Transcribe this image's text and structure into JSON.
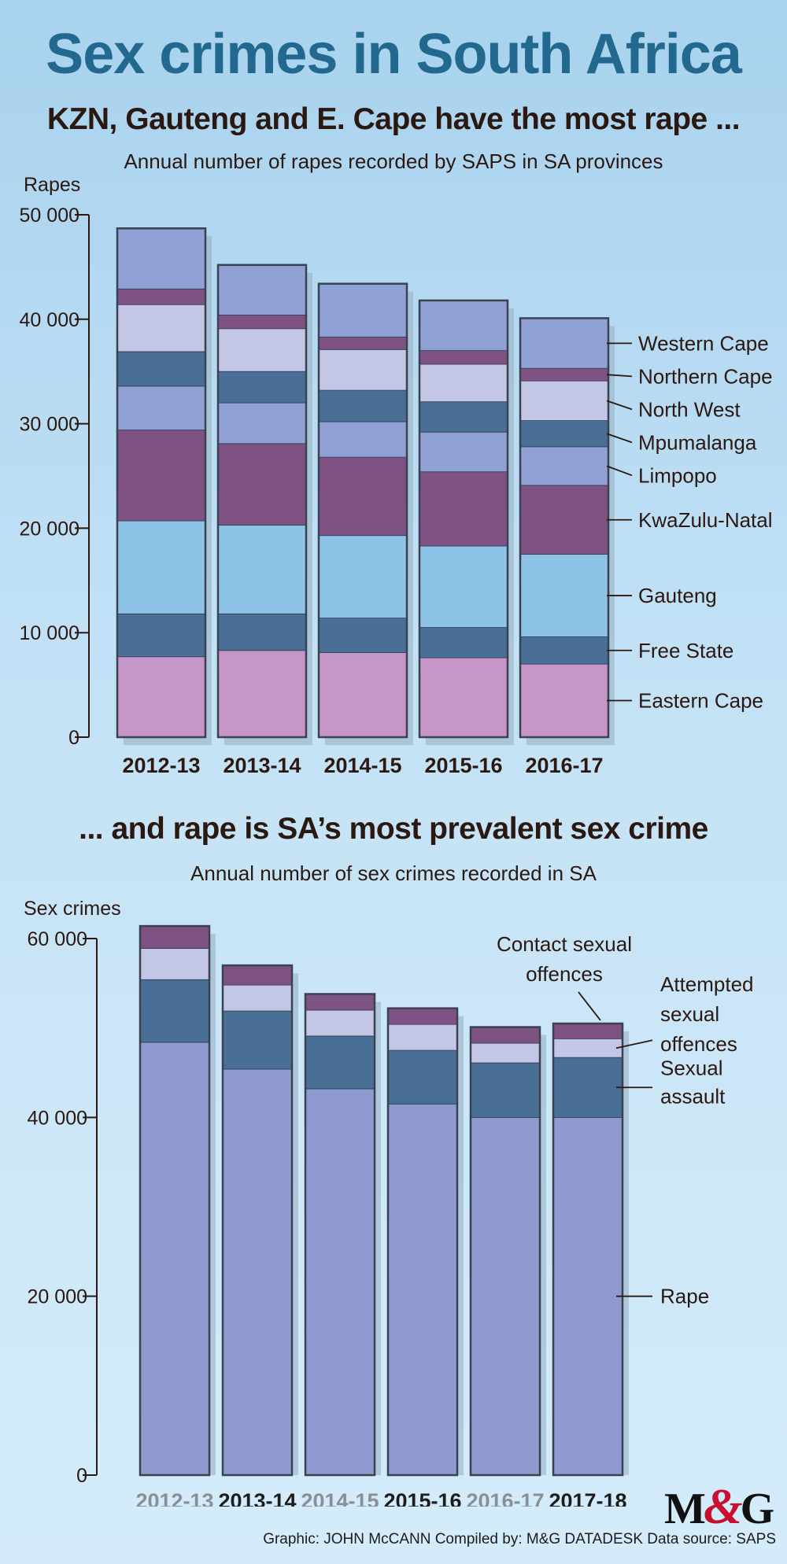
{
  "title": "Sex crimes in South Africa",
  "footer": "Graphic: JOHN McCANN  Compiled by: M&G DATADESK  Data source: SAPS",
  "logo": {
    "letter1": "M",
    "amp": "&",
    "letter2": "G"
  },
  "colors": {
    "title": "#22688f",
    "eastern_cape": "#c796c8",
    "free_state": "#4a6f96",
    "gauteng": "#8ec3e8",
    "kwazulu_natal": "#7f5284",
    "limpopo": "#8fa0d4",
    "mpumalanga": "#4a6f96",
    "north_west": "#c4c6e6",
    "northern_cape": "#7f5284",
    "western_cape": "#8fa0d4",
    "rape": "#8f9bd0",
    "sexual_assault": "#4a6f96",
    "attempted": "#c4c6e6",
    "contact": "#7f5284"
  },
  "chart_data": [
    {
      "type": "bar",
      "stacked": true,
      "title": "KZN, Gauteng and E. Cape have the most rape ...",
      "subtitle": "Annual number of rapes recorded by SAPS in SA provinces",
      "ylabel": "Rapes",
      "ylim": [
        0,
        50000
      ],
      "yticks": [
        "0",
        "10 000",
        "20 000",
        "30 000",
        "40 000",
        "50 000"
      ],
      "categories": [
        "2012-13",
        "2013-14",
        "2014-15",
        "2015-16",
        "2016-17"
      ],
      "series": [
        {
          "name": "Eastern Cape",
          "color": "#c796c8",
          "values": [
            7700,
            8300,
            8100,
            7600,
            7000
          ]
        },
        {
          "name": "Free State",
          "color": "#4a6f96",
          "values": [
            4100,
            3500,
            3300,
            2900,
            2600
          ]
        },
        {
          "name": "Gauteng",
          "color": "#8ec3e8",
          "values": [
            8900,
            8500,
            7900,
            7800,
            7900
          ]
        },
        {
          "name": "KwaZulu-Natal",
          "color": "#7f5284",
          "values": [
            8700,
            7800,
            7500,
            7100,
            6600
          ]
        },
        {
          "name": "Limpopo",
          "color": "#8fa0d4",
          "values": [
            4200,
            3900,
            3400,
            3800,
            3700
          ]
        },
        {
          "name": "Mpumalanga",
          "color": "#4a6f96",
          "values": [
            3300,
            3000,
            3000,
            2900,
            2500
          ]
        },
        {
          "name": "North West",
          "color": "#c4c6e6",
          "values": [
            4500,
            4100,
            3900,
            3600,
            3800
          ]
        },
        {
          "name": "Northern Cape",
          "color": "#7f5284",
          "values": [
            1500,
            1300,
            1200,
            1300,
            1200
          ]
        },
        {
          "name": "Western Cape",
          "color": "#8fa0d4",
          "values": [
            5800,
            4800,
            5100,
            4800,
            4800
          ]
        }
      ]
    },
    {
      "type": "bar",
      "stacked": true,
      "title": "... and rape is SA’s most prevalent sex crime",
      "subtitle": "Annual number of sex crimes recorded in SA",
      "ylabel": "Sex crimes",
      "ylim": [
        0,
        60000
      ],
      "yticks": [
        "0",
        "20 000",
        "40 000",
        "60 000"
      ],
      "yticks_values": [
        0,
        20000,
        40000,
        60000
      ],
      "categories": [
        "2012-13",
        "2013-14",
        "2014-15",
        "2015-16",
        "2016-17",
        "2017-18"
      ],
      "category_colors": [
        "#8a8f94",
        "#1c1c1c",
        "#8a8f94",
        "#1c1c1c",
        "#8a8f94",
        "#1c1c1c"
      ],
      "series": [
        {
          "name": "Rape",
          "color": "#8f9bd0",
          "values": [
            48400,
            45400,
            43200,
            41500,
            40000,
            40000
          ]
        },
        {
          "name": "Sexual assault",
          "color": "#4a6f96",
          "values": [
            7000,
            6500,
            5900,
            6000,
            6100,
            6700
          ]
        },
        {
          "name": "Attempted sexual offences",
          "color": "#c4c6e6",
          "values": [
            3500,
            2900,
            2900,
            2900,
            2200,
            2100
          ]
        },
        {
          "name": "Contact sexual offences",
          "color": "#7f5284",
          "values": [
            2500,
            2200,
            1800,
            1800,
            1800,
            1700
          ]
        }
      ],
      "legend": [
        {
          "lines": [
            "Contact sexual",
            "offences"
          ]
        },
        {
          "lines": [
            "Attempted",
            "sexual",
            "offences"
          ]
        },
        {
          "lines": [
            "Sexual",
            "assault"
          ]
        },
        {
          "lines": [
            "Rape"
          ]
        }
      ]
    }
  ]
}
